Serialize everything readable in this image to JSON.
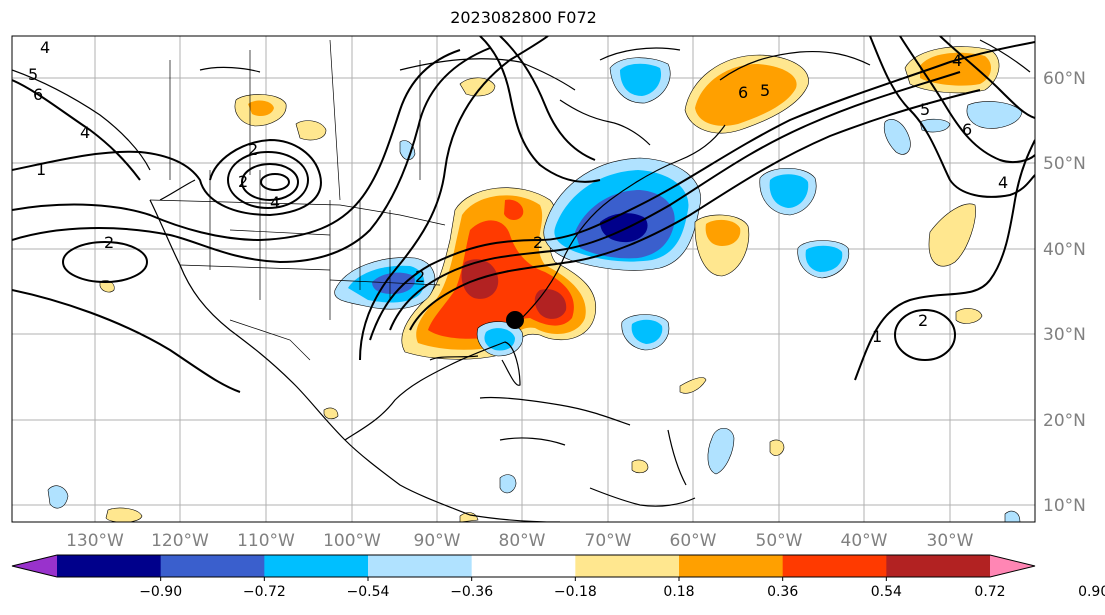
{
  "title": "2023082800 F072",
  "map": {
    "lon_labels": [
      "130°W",
      "120°W",
      "110°W",
      "100°W",
      "90°W",
      "80°W",
      "70°W",
      "60°W",
      "50°W",
      "40°W",
      "30°W"
    ],
    "lat_labels": [
      "60°N",
      "50°N",
      "40°N",
      "30°N",
      "20°N",
      "10°N"
    ],
    "contour_labels": [
      "4",
      "5",
      "6",
      "4",
      "1",
      "2",
      "2",
      "2",
      "4",
      "2",
      "2",
      "6",
      "5",
      "4",
      "5",
      "6",
      "4",
      "1",
      "2"
    ],
    "storm_marker": "black-dot"
  },
  "colorbar": {
    "tick_labels": [
      "−0.90",
      "−0.72",
      "−0.54",
      "−0.36",
      "−0.18",
      "0.18",
      "0.36",
      "0.54",
      "0.72",
      "0.90"
    ],
    "colors": [
      "#9932cc",
      "#00008b",
      "#3a5fcd",
      "#00bfff",
      "#b0e2ff",
      "#ffffff",
      "#ffe78f",
      "#ffa000",
      "#ff3a00",
      "#b22222",
      "#ff86b4"
    ]
  }
}
